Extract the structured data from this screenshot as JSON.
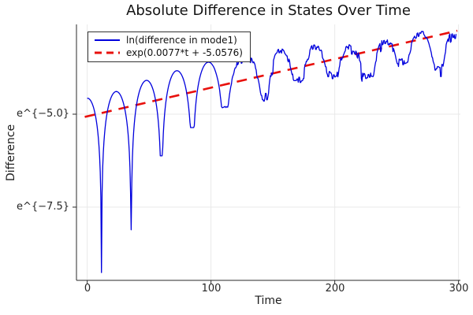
{
  "figure": {
    "background": "#ffffff"
  },
  "chart_data": {
    "type": "line",
    "title": "Absolute Difference in States Over Time",
    "xlabel": "Time",
    "ylabel": "Difference",
    "x_ticks": [
      "0",
      "100",
      "200",
      "300"
    ],
    "x_tick_values": [
      0,
      100,
      200,
      300
    ],
    "y_ticks": [
      {
        "label": "e^{−5.0}",
        "ln": -5.0
      },
      {
        "label": "e^{−7.5}",
        "ln": -7.5
      }
    ],
    "x_range": [
      -8.7,
      301.5
    ],
    "y_range_ln": [
      -9.47,
      -2.585
    ],
    "y_scale": "ln",
    "grid": true,
    "grid_color": "#e9e9e9",
    "axis_color": "#2a2a2a",
    "legend_position": "top-left",
    "series": [
      {
        "name": "ln(difference in mode1)",
        "color": "#0000dd",
        "style": "solid",
        "line_width": 1.3,
        "arcs": [
          {
            "t0": 0,
            "v0": -4.58,
            "tp": 0.2,
            "vp": -4.57,
            "t1": 11.5,
            "v1": -9.26
          },
          {
            "t0": 11.5,
            "v0": -9.26,
            "tp": 23.5,
            "vp": -4.39,
            "t1": 35.5,
            "v1": -8.11
          },
          {
            "t0": 35.5,
            "v0": -8.11,
            "tp": 48,
            "vp": -4.09,
            "t1": 60,
            "v1": -6.12
          },
          {
            "t0": 60,
            "v0": -6.12,
            "tp": 72.5,
            "vp": -3.83,
            "t1": 85,
            "v1": -5.36
          },
          {
            "t0": 85,
            "v0": -5.36,
            "tp": 98,
            "vp": -3.6,
            "t1": 111,
            "v1": -4.8
          },
          {
            "t0": 111,
            "v0": -4.8,
            "tp": 128,
            "vp": -3.43,
            "t1": 144,
            "v1": -4.53
          },
          {
            "t0": 144,
            "v0": -4.53,
            "tp": 156,
            "vp": -3.3,
            "t1": 171,
            "v1": -4.12
          },
          {
            "t0": 171,
            "v0": -4.12,
            "tp": 184,
            "vp": -3.18,
            "t1": 198,
            "v1": -3.95
          },
          {
            "t0": 198,
            "v0": -3.95,
            "tp": 212,
            "vp": -3.2,
            "t1": 228,
            "v1": -3.98
          },
          {
            "t0": 228,
            "v0": -3.98,
            "tp": 241,
            "vp": -3.0,
            "t1": 255,
            "v1": -3.62
          },
          {
            "t0": 255,
            "v0": -3.62,
            "tp": 269,
            "vp": -2.8,
            "t1": 284,
            "v1": -3.75
          },
          {
            "t0": 284,
            "v0": -3.75,
            "tp": 296.5,
            "vp": -2.85,
            "t1": 298,
            "v1": -2.88
          }
        ],
        "noise": {
          "start_t": 100,
          "ramp_t": 45,
          "amp_ln": 0.13
        }
      },
      {
        "name": "exp(0.0077*t + -5.0576)",
        "color": "#e8100c",
        "style": "dashed",
        "line_width": 2.6,
        "dash": [
          13,
          9
        ],
        "slope": 0.0077,
        "intercept": -5.0576,
        "t_start": -2,
        "t_end": 299
      }
    ]
  }
}
